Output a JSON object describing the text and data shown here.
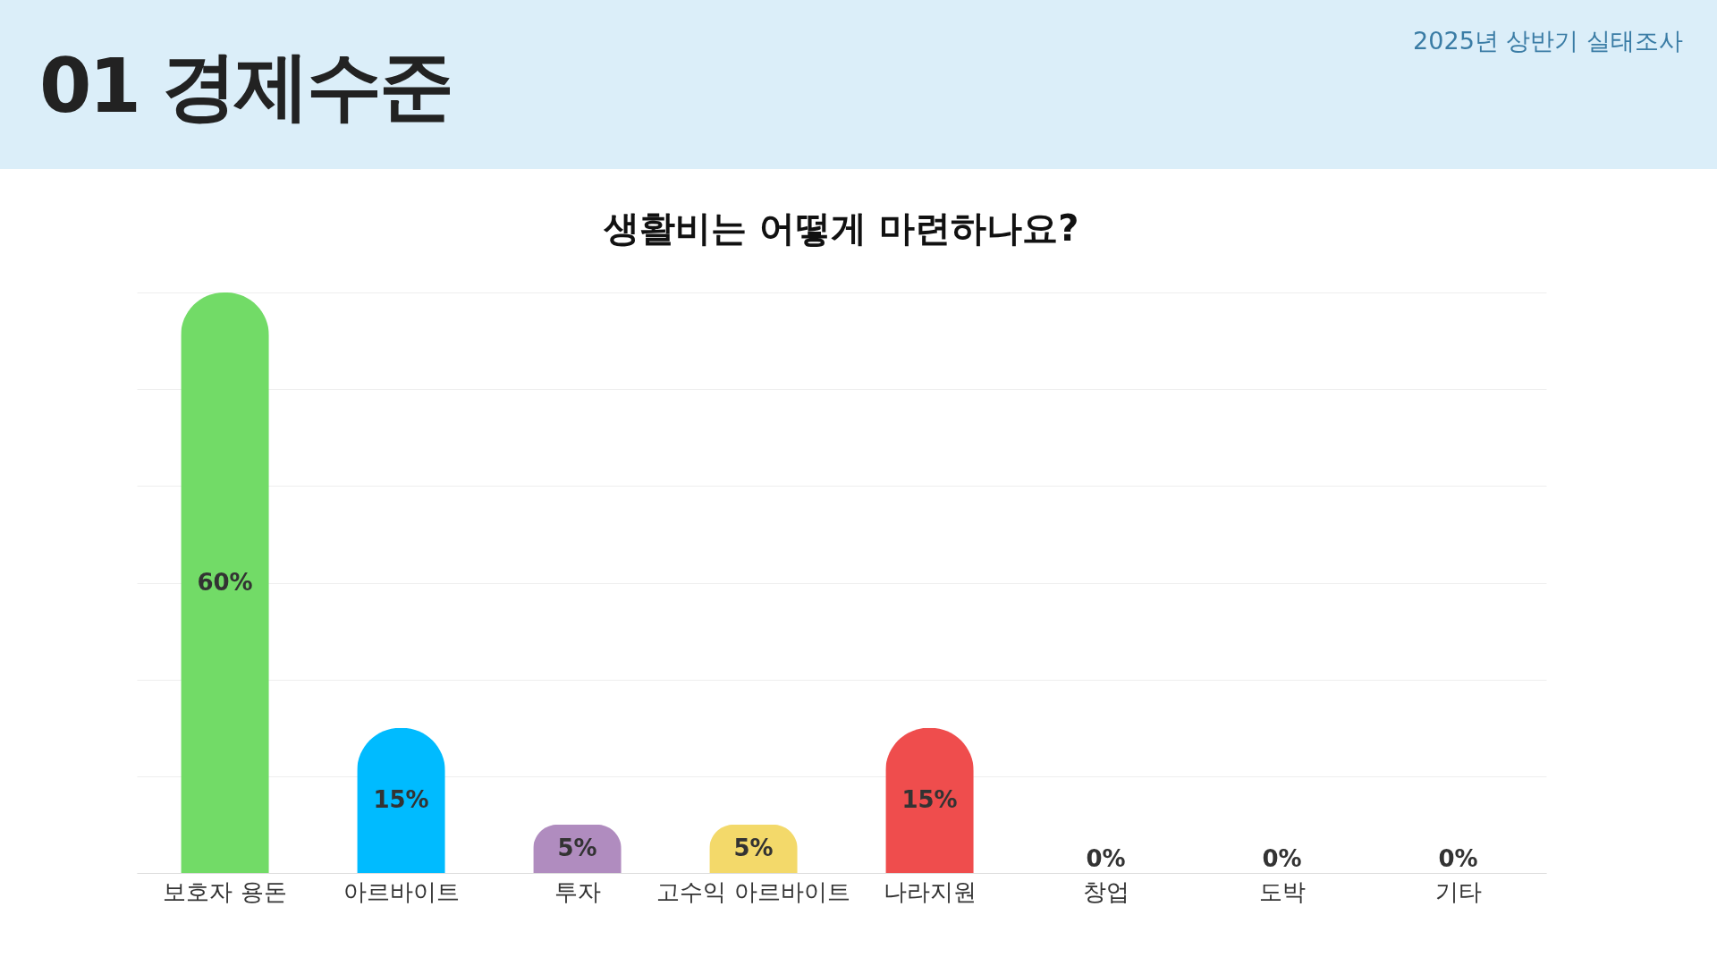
{
  "chart_data": {
    "type": "bar",
    "title": "생활비는 어떻게 마련하나요?",
    "annotations": [
      "01 경제수준",
      "2025년 상반기 실태조사"
    ],
    "categories": [
      "보호자 용돈",
      "아르바이트",
      "투자",
      "고수익 아르바이트",
      "나라지원",
      "창업",
      "도박",
      "기타"
    ],
    "values": [
      60,
      15,
      5,
      5,
      15,
      0,
      0,
      0
    ],
    "colors": [
      "#72db67",
      "#00bbff",
      "#b08cbf",
      "#f3d96a",
      "#ef4d4d",
      "#9e9e9e",
      "#9e9e9e",
      "#9e9e9e"
    ],
    "value_labels": [
      "60%",
      "15%",
      "5%",
      "5%",
      "15%",
      "0%",
      "0%",
      "0%"
    ],
    "grid": "y",
    "tick_labels": "x"
  }
}
